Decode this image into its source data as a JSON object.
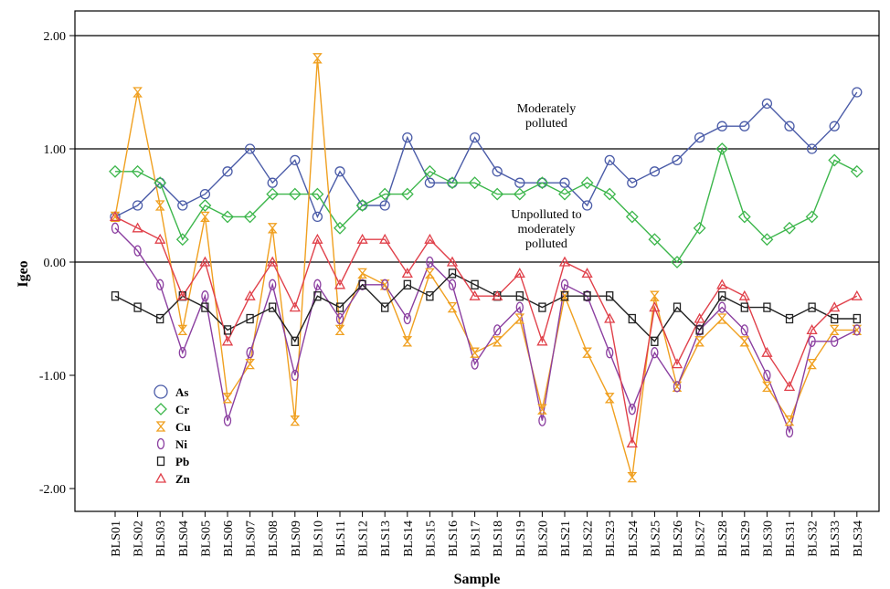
{
  "chart_data": {
    "type": "line",
    "xlabel": "Sample",
    "ylabel": "Igeo",
    "ylim": [
      -2.25,
      2.25
    ],
    "y_ticks": [
      2.0,
      1.0,
      0.0,
      -1.0,
      -2.0
    ],
    "y_tick_labels": [
      "2.00",
      "1.00",
      "0.00",
      "-1.00",
      "-2.00"
    ],
    "reference_lines": [
      2.0,
      1.0,
      0.0
    ],
    "grid": false,
    "legend_position": "bottom-left",
    "annotations": [
      {
        "lines": [
          "Moderately",
          "polluted"
        ],
        "y": 1.3
      },
      {
        "lines": [
          "Unpolluted to",
          "moderately",
          "polluted"
        ],
        "y": 0.3
      }
    ],
    "categories": [
      "BLS01",
      "BLS02",
      "BLS03",
      "BLS04",
      "BLS05",
      "BLS06",
      "BLS07",
      "BLS08",
      "BLS09",
      "BLS10",
      "BLS11",
      "BLS12",
      "BLS13",
      "BLS14",
      "BLS15",
      "BLS16",
      "BLS17",
      "BLS18",
      "BLS19",
      "BLS20",
      "BLS21",
      "BLS22",
      "BLS23",
      "BLS24",
      "BLS25",
      "BLS26",
      "BLS27",
      "BLS28",
      "BLS29",
      "BLS30",
      "BLS31",
      "BLS32",
      "BLS33",
      "BLS34"
    ],
    "series": [
      {
        "name": "As",
        "color": "#4b5ca8",
        "marker": "circle",
        "values": [
          0.4,
          0.5,
          0.7,
          0.5,
          0.6,
          0.8,
          1.0,
          0.7,
          0.9,
          0.4,
          0.8,
          0.5,
          0.5,
          1.1,
          0.7,
          0.7,
          1.1,
          0.8,
          0.7,
          0.7,
          0.7,
          0.5,
          0.9,
          0.7,
          0.8,
          0.9,
          1.1,
          1.2,
          1.2,
          1.4,
          1.2,
          1.0,
          1.2,
          1.5
        ]
      },
      {
        "name": "Cr",
        "color": "#3cb64b",
        "marker": "diamond",
        "values": [
          0.8,
          0.8,
          0.7,
          0.2,
          0.5,
          0.4,
          0.4,
          0.6,
          0.6,
          0.6,
          0.3,
          0.5,
          0.6,
          0.6,
          0.8,
          0.7,
          0.7,
          0.6,
          0.6,
          0.7,
          0.6,
          0.7,
          0.6,
          0.4,
          0.2,
          0.0,
          0.3,
          1.0,
          0.4,
          0.2,
          0.3,
          0.4,
          0.9,
          0.8
        ]
      },
      {
        "name": "Cu",
        "color": "#f0a020",
        "marker": "hourglass",
        "values": [
          0.4,
          1.5,
          0.5,
          -0.6,
          0.4,
          -1.2,
          -0.9,
          0.3,
          -1.4,
          1.8,
          -0.6,
          -0.1,
          -0.2,
          -0.7,
          -0.1,
          -0.4,
          -0.8,
          -0.7,
          -0.5,
          -1.3,
          -0.3,
          -0.8,
          -1.2,
          -1.9,
          -0.3,
          -1.1,
          -0.7,
          -0.5,
          -0.7,
          -1.1,
          -1.4,
          -0.9,
          -0.6,
          -0.6
        ]
      },
      {
        "name": "Ni",
        "color": "#8b3fa0",
        "marker": "ellipse",
        "values": [
          0.3,
          0.1,
          -0.2,
          -0.8,
          -0.3,
          -1.4,
          -0.8,
          -0.2,
          -1.0,
          -0.2,
          -0.5,
          -0.2,
          -0.2,
          -0.5,
          0.0,
          -0.2,
          -0.9,
          -0.6,
          -0.4,
          -1.4,
          -0.2,
          -0.3,
          -0.8,
          -1.3,
          -0.8,
          -1.1,
          -0.6,
          -0.4,
          -0.6,
          -1.0,
          -1.5,
          -0.7,
          -0.7,
          -0.6
        ]
      },
      {
        "name": "Pb",
        "color": "#222222",
        "marker": "square",
        "values": [
          -0.3,
          -0.4,
          -0.5,
          -0.3,
          -0.4,
          -0.6,
          -0.5,
          -0.4,
          -0.7,
          -0.3,
          -0.4,
          -0.2,
          -0.4,
          -0.2,
          -0.3,
          -0.1,
          -0.2,
          -0.3,
          -0.3,
          -0.4,
          -0.3,
          -0.3,
          -0.3,
          -0.5,
          -0.7,
          -0.4,
          -0.6,
          -0.3,
          -0.4,
          -0.4,
          -0.5,
          -0.4,
          -0.5,
          -0.5
        ]
      },
      {
        "name": "Zn",
        "color": "#e0404a",
        "marker": "triangle",
        "values": [
          0.4,
          0.3,
          0.2,
          -0.3,
          0.0,
          -0.7,
          -0.3,
          0.0,
          -0.4,
          0.2,
          -0.2,
          0.2,
          0.2,
          -0.1,
          0.2,
          0.0,
          -0.3,
          -0.3,
          -0.1,
          -0.7,
          0.0,
          -0.1,
          -0.5,
          -1.6,
          -0.4,
          -0.9,
          -0.5,
          -0.2,
          -0.3,
          -0.8,
          -1.1,
          -0.6,
          -0.4,
          -0.3
        ]
      }
    ]
  }
}
